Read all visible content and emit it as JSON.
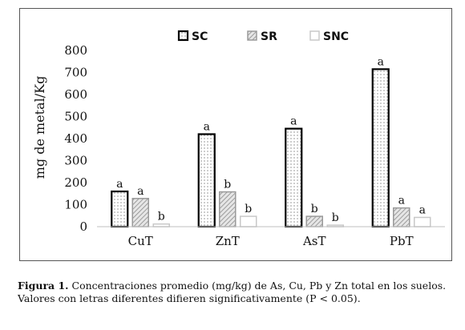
{
  "chart_data": {
    "type": "bar",
    "title": "",
    "xlabel": "",
    "ylabel": "mg de metal/Kg",
    "ylim": [
      0,
      800
    ],
    "yticks": [
      0,
      100,
      200,
      300,
      400,
      500,
      600,
      700,
      800
    ],
    "grid": false,
    "legend_position": "top-center",
    "categories": [
      "CuT",
      "ZnT",
      "AsT",
      "PbT"
    ],
    "series": [
      {
        "name": "SC",
        "pattern": "dots",
        "values": [
          160,
          420,
          445,
          715
        ],
        "letters": [
          "a",
          "a",
          "a",
          "a"
        ]
      },
      {
        "name": "SR",
        "pattern": "hatch",
        "values": [
          128,
          158,
          47,
          85
        ],
        "letters": [
          "a",
          "b",
          "b",
          "a"
        ]
      },
      {
        "name": "SNC",
        "pattern": "light",
        "values": [
          12,
          47,
          7,
          42
        ],
        "letters": [
          "b",
          "b",
          "b",
          "a"
        ]
      }
    ]
  },
  "caption": {
    "label": "Figura 1.",
    "text": "Concentraciones promedio (mg/kg) de As, Cu, Pb y Zn total en los suelos. Valores con letras diferentes difieren significativamente (P < 0.05)."
  },
  "colors": {
    "bar_stroke_sc": "#000000",
    "bar_stroke_sr": "#9a9a9a",
    "bar_stroke_snc": "#c8c8c8",
    "axis": "#bfbfbf",
    "text": "#111111"
  }
}
